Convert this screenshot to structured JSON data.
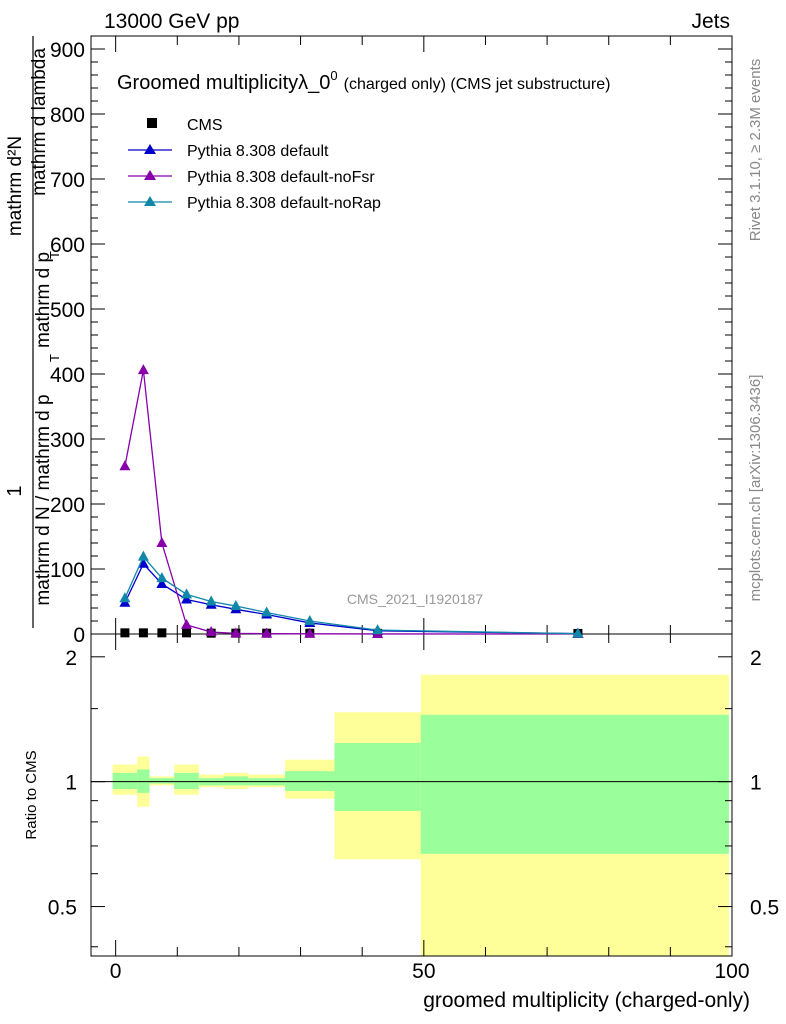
{
  "header": {
    "energy": "13000 GeV pp",
    "process": "Jets",
    "title": "Groomed multiplicityλ_0",
    "title_sup": "0",
    "title_small": "(charged only) (CMS jet substructure)",
    "analysis": "CMS_2021_I1920187",
    "rivet": "Rivet 3.1.10, ≥ 2.3M events",
    "mcplots": "mcplots.cern.ch [arXiv:1306.3436]"
  },
  "chart_data": [
    {
      "type": "line",
      "title": "Groomed multiplicityλ_0^0 (charged only) (CMS jet substructure)",
      "ylabel": "1 / mathrm d N / mathrm d p_T mathrm d p_T mathrm d^2N / mathrm d lambda",
      "ylabel_parts": {
        "numerator": "1",
        "denominator": "mathrm d N / mathrm d p",
        "right_top": "mathrm d²N",
        "right_bottom": "mathrm d p",
        "right_tail": "mathrm d lambda",
        "sub_t": "T"
      },
      "xlim": [
        -4,
        100
      ],
      "ylim": [
        0,
        920
      ],
      "yticks": [
        0,
        100,
        200,
        300,
        400,
        500,
        600,
        700,
        800,
        900
      ],
      "series": [
        {
          "name": "CMS",
          "color": "#000000",
          "marker": "square",
          "x": [
            1.5,
            4.5,
            7.5,
            11.5,
            15.5,
            19.5,
            24.5,
            31.5,
            42.5,
            75
          ],
          "y": [
            1,
            1,
            1,
            1,
            0.5,
            0.5,
            0.5,
            0.5,
            0.3,
            0.1
          ]
        },
        {
          "name": "Pythia 8.308 default",
          "color": "#0000cc",
          "marker": "triangle",
          "x": [
            1.5,
            4.5,
            7.5,
            11.5,
            15.5,
            19.5,
            24.5,
            31.5,
            42.5,
            75
          ],
          "y": [
            48,
            108,
            77,
            53,
            45,
            38,
            30,
            17,
            5,
            0.5
          ]
        },
        {
          "name": "Pythia 8.308 default-noFsr",
          "color": "#8800aa",
          "marker": "triangle",
          "x": [
            1.5,
            4.5,
            7.5,
            11.5,
            15.5,
            19.5,
            24.5,
            31.5,
            42.5,
            75
          ],
          "y": [
            258,
            406,
            140,
            14,
            3,
            1,
            0.5,
            0.3,
            0.1,
            0
          ]
        },
        {
          "name": "Pythia 8.308 default-noRap",
          "color": "#1188aa",
          "marker": "triangle",
          "x": [
            1.5,
            4.5,
            7.5,
            11.5,
            15.5,
            19.5,
            24.5,
            31.5,
            42.5,
            75
          ],
          "y": [
            55,
            119,
            86,
            61,
            50,
            43,
            33,
            20,
            6,
            0.5
          ]
        }
      ]
    },
    {
      "type": "area",
      "ylabel": "Ratio to CMS",
      "xlabel": "groomed multiplicity (charged-only)",
      "xlim": [
        -4,
        100
      ],
      "ylim": [
        0.38,
        2.27
      ],
      "xticks": [
        0,
        50,
        100
      ],
      "yticks": [
        0.5,
        1,
        2
      ],
      "bands": [
        {
          "x0": -0.5,
          "x1": 3.5,
          "inner": [
            0.96,
            1.05
          ],
          "outer": [
            0.93,
            1.1
          ]
        },
        {
          "x0": 3.5,
          "x1": 5.5,
          "inner": [
            0.94,
            1.07
          ],
          "outer": [
            0.87,
            1.15
          ]
        },
        {
          "x0": 5.5,
          "x1": 9.5,
          "inner": [
            0.99,
            1.02
          ],
          "outer": [
            0.98,
            1.03
          ]
        },
        {
          "x0": 9.5,
          "x1": 13.5,
          "inner": [
            0.96,
            1.05
          ],
          "outer": [
            0.93,
            1.1
          ]
        },
        {
          "x0": 13.5,
          "x1": 17.5,
          "inner": [
            0.98,
            1.02
          ],
          "outer": [
            0.97,
            1.04
          ]
        },
        {
          "x0": 17.5,
          "x1": 21.5,
          "inner": [
            0.98,
            1.03
          ],
          "outer": [
            0.96,
            1.05
          ]
        },
        {
          "x0": 21.5,
          "x1": 27.5,
          "inner": [
            0.98,
            1.02
          ],
          "outer": [
            0.97,
            1.04
          ]
        },
        {
          "x0": 27.5,
          "x1": 35.5,
          "inner": [
            0.95,
            1.06
          ],
          "outer": [
            0.91,
            1.13
          ]
        },
        {
          "x0": 35.5,
          "x1": 49.5,
          "inner": [
            0.85,
            1.24
          ],
          "outer": [
            0.65,
            1.47
          ]
        },
        {
          "x0": 49.5,
          "x1": 99.5,
          "inner": [
            0.67,
            1.45
          ],
          "outer": [
            0.38,
            1.81
          ]
        }
      ]
    }
  ],
  "legend": [
    {
      "label": "CMS"
    },
    {
      "label": "Pythia 8.308 default"
    },
    {
      "label": "Pythia 8.308 default-noFsr"
    },
    {
      "label": "Pythia 8.308 default-noRap"
    }
  ],
  "colors": {
    "inner_band": "#9aff9a",
    "outer_band": "#ffff99"
  }
}
